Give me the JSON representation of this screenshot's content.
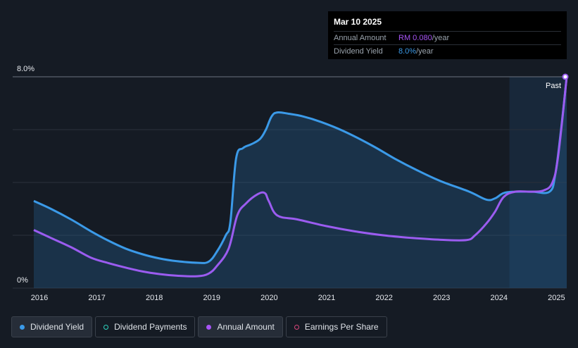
{
  "tooltip": {
    "date": "Mar 10 2025",
    "annual_label": "Annual Amount",
    "annual_value": "RM 0.080",
    "annual_unit": "/year",
    "yield_label": "Dividend Yield",
    "yield_value": "8.0%",
    "yield_unit": "/year"
  },
  "past_label": "Past",
  "legend": [
    {
      "label": "Dividend Yield",
      "color": "#3b9ae8",
      "style": "filled",
      "active": true
    },
    {
      "label": "Dividend Payments",
      "color": "#2dd4bf",
      "style": "hollow",
      "active": false
    },
    {
      "label": "Annual Amount",
      "color": "#a855f7",
      "style": "filled",
      "active": true
    },
    {
      "label": "Earnings Per Share",
      "color": "#d9467a",
      "style": "hollow",
      "active": false
    }
  ],
  "colors": {
    "yield": "#3b9ae8",
    "amount": "#9b5cf0",
    "grid": "#2a313b",
    "future_band": "#18283a"
  },
  "chart_data": {
    "type": "line",
    "xlim": [
      2015.75,
      2025.2
    ],
    "ylim": [
      0,
      8.0
    ],
    "y_tick_labels": [
      {
        "value": 8.0,
        "label": "8.0%"
      },
      {
        "value": 0,
        "label": "0%"
      }
    ],
    "y_grid": [
      0,
      2,
      4,
      6,
      8
    ],
    "x_ticks": [
      {
        "value": 2016,
        "label": "2016"
      },
      {
        "value": 2017,
        "label": "2017"
      },
      {
        "value": 2018,
        "label": "2018"
      },
      {
        "value": 2019,
        "label": "2019"
      },
      {
        "value": 2020,
        "label": "2020"
      },
      {
        "value": 2021,
        "label": "2021"
      },
      {
        "value": 2022,
        "label": "2022"
      },
      {
        "value": 2023,
        "label": "2023"
      },
      {
        "value": 2024,
        "label": "2024"
      },
      {
        "value": 2025,
        "label": "2025"
      }
    ],
    "past_band_start": 2024.2,
    "series": [
      {
        "name": "Dividend Yield",
        "unit": "%",
        "x": [
          2015.9,
          2016.2,
          2016.55,
          2016.9,
          2017.2,
          2017.5,
          2017.8,
          2018.1,
          2018.4,
          2018.75,
          2018.95,
          2019.1,
          2019.25,
          2019.33,
          2019.43,
          2019.55,
          2019.7,
          2019.85,
          2019.95,
          2020.05,
          2020.15,
          2020.35,
          2020.6,
          2020.9,
          2021.3,
          2021.8,
          2022.2,
          2022.6,
          2023.0,
          2023.5,
          2023.8,
          2023.95,
          2024.1,
          2024.3,
          2024.6,
          2024.9,
          2025.0,
          2025.1,
          2025.2
        ],
        "y": [
          3.3,
          3.0,
          2.6,
          2.15,
          1.8,
          1.5,
          1.28,
          1.12,
          1.02,
          0.96,
          1.0,
          1.4,
          2.0,
          2.5,
          4.9,
          5.3,
          5.45,
          5.65,
          6.0,
          6.5,
          6.65,
          6.6,
          6.5,
          6.3,
          5.95,
          5.4,
          4.9,
          4.45,
          4.05,
          3.65,
          3.35,
          3.4,
          3.6,
          3.65,
          3.65,
          3.65,
          4.3,
          6.0,
          8.0
        ]
      },
      {
        "name": "Annual Amount",
        "unit": "RM",
        "x": [
          2015.9,
          2016.2,
          2016.55,
          2016.9,
          2017.2,
          2017.5,
          2017.8,
          2018.1,
          2018.4,
          2018.75,
          2018.95,
          2019.1,
          2019.3,
          2019.45,
          2019.6,
          2019.8,
          2019.93,
          2020.0,
          2020.15,
          2020.5,
          2021.0,
          2021.5,
          2022.0,
          2022.5,
          2023.0,
          2023.45,
          2023.6,
          2023.8,
          2023.95,
          2024.1,
          2024.3,
          2024.6,
          2024.8,
          2024.95,
          2025.05,
          2025.2
        ],
        "y": [
          2.2,
          1.9,
          1.55,
          1.15,
          0.95,
          0.78,
          0.63,
          0.53,
          0.47,
          0.45,
          0.55,
          0.85,
          1.5,
          2.75,
          3.2,
          3.55,
          3.6,
          3.3,
          2.75,
          2.6,
          2.35,
          2.15,
          2.0,
          1.9,
          1.83,
          1.82,
          2.0,
          2.45,
          2.9,
          3.45,
          3.65,
          3.65,
          3.7,
          4.0,
          5.0,
          8.0
        ]
      }
    ]
  }
}
